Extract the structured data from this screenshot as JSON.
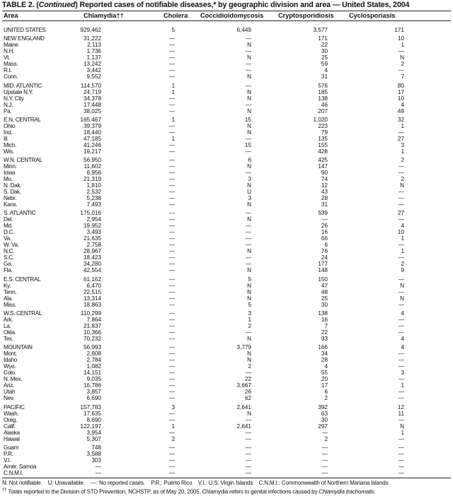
{
  "title": {
    "prefix": "TABLE 2. (",
    "continued": "Continued",
    "rest": ") Reported cases of notifiable diseases,* by geographic division and area — United States, 2004"
  },
  "columns": [
    "Area",
    "Chlamydia††",
    "Cholera",
    "Coccidioidomycosis",
    "Cryptosporidiosis",
    "Cyclosporiasis"
  ],
  "groups": [
    [
      [
        "UNITED STATES",
        "929,462",
        "5",
        "6,449",
        "3,577",
        "171"
      ]
    ],
    [
      [
        "NEW ENGLAND",
        "31,222",
        "—",
        "—",
        "171",
        "10"
      ],
      [
        "Maine",
        "2,113",
        "—",
        "N",
        "22",
        "1"
      ],
      [
        "N.H.",
        "1,736",
        "—",
        "—",
        "30",
        "—"
      ],
      [
        "Vt.",
        "1,137",
        "—",
        "N",
        "25",
        "N"
      ],
      [
        "Mass.",
        "13,242",
        "—",
        "—",
        "59",
        "2"
      ],
      [
        "R.I.",
        "3,442",
        "—",
        "—",
        "4",
        "—"
      ],
      [
        "Conn.",
        "9,552",
        "—",
        "N",
        "31",
        "7"
      ]
    ],
    [
      [
        "MID. ATLANTIC",
        "114,570",
        "1",
        "—",
        "576",
        "80"
      ],
      [
        "Upstate N.Y.",
        "24,719",
        "1",
        "N",
        "185",
        "17"
      ],
      [
        "N.Y. City",
        "34,378",
        "—",
        "N",
        "138",
        "10"
      ],
      [
        "N.J.",
        "17,448",
        "—",
        "—",
        "46",
        "4"
      ],
      [
        "Pa.",
        "38,025",
        "—",
        "N",
        "207",
        "49"
      ]
    ],
    [
      [
        "E.N. CENTRAL",
        "165,467",
        "1",
        "15",
        "1,020",
        "32"
      ],
      [
        "Ohio",
        "39,379",
        "—",
        "N",
        "223",
        "1"
      ],
      [
        "Ind.",
        "18,440",
        "—",
        "N",
        "79",
        "—"
      ],
      [
        "Ill.",
        "47,185",
        "1",
        "—",
        "135",
        "27"
      ],
      [
        "Mich.",
        "41,246",
        "—",
        "15",
        "155",
        "3"
      ],
      [
        "Wis.",
        "19,217",
        "—",
        "—",
        "428",
        "1"
      ]
    ],
    [
      [
        "W.N. CENTRAL",
        "56,950",
        "—",
        "6",
        "425",
        "2"
      ],
      [
        "Minn.",
        "11,602",
        "—",
        "N",
        "147",
        "—"
      ],
      [
        "Iowa",
        "6,956",
        "—",
        "—",
        "90",
        "—"
      ],
      [
        "Mo.",
        "21,319",
        "—",
        "3",
        "74",
        "2"
      ],
      [
        "N. Dak.",
        "1,810",
        "—",
        "N",
        "12",
        "N"
      ],
      [
        "S. Dak.",
        "2,532",
        "—",
        "U",
        "43",
        "—"
      ],
      [
        "Nebr.",
        "5,238",
        "—",
        "3",
        "28",
        "—"
      ],
      [
        "Kans.",
        "7,493",
        "—",
        "N",
        "31",
        "—"
      ]
    ],
    [
      [
        "S. ATLANTIC",
        "175,016",
        "—",
        "—",
        "539",
        "27"
      ],
      [
        "Del.",
        "2,954",
        "—",
        "N",
        "—",
        "—"
      ],
      [
        "Md.",
        "19,952",
        "—",
        "—",
        "26",
        "4"
      ],
      [
        "D.C.",
        "3,493",
        "—",
        "—",
        "16",
        "10"
      ],
      [
        "Va.",
        "21,635",
        "—",
        "—",
        "66",
        "1"
      ],
      [
        "W. Va.",
        "2,758",
        "—",
        "—",
        "6",
        "—"
      ],
      [
        "N.C.",
        "28,967",
        "—",
        "N",
        "76",
        "1"
      ],
      [
        "S.C.",
        "18,423",
        "—",
        "—",
        "24",
        "—"
      ],
      [
        "Ga.",
        "34,280",
        "—",
        "—",
        "177",
        "2"
      ],
      [
        "Fla.",
        "42,554",
        "—",
        "N",
        "148",
        "9"
      ]
    ],
    [
      [
        "E.S. CENTRAL",
        "61,162",
        "—",
        "5",
        "150",
        "—"
      ],
      [
        "Ky.",
        "6,470",
        "—",
        "N",
        "47",
        "N"
      ],
      [
        "Tenn.",
        "22,515",
        "—",
        "N",
        "48",
        "—"
      ],
      [
        "Ala.",
        "13,314",
        "—",
        "N",
        "25",
        "N"
      ],
      [
        "Miss.",
        "18,863",
        "—",
        "5",
        "30",
        "—"
      ]
    ],
    [
      [
        "W.S. CENTRAL",
        "110,299",
        "—",
        "3",
        "138",
        "4"
      ],
      [
        "Ark.",
        "7,864",
        "—",
        "1",
        "16",
        "—"
      ],
      [
        "La.",
        "21,837",
        "—",
        "2",
        "7",
        "—"
      ],
      [
        "Okla.",
        "10,366",
        "—",
        "—",
        "22",
        "—"
      ],
      [
        "Tex.",
        "70,232",
        "—",
        "N",
        "93",
        "4"
      ]
    ],
    [
      [
        "MOUNTAIN",
        "56,993",
        "—",
        "3,779",
        "166",
        "4"
      ],
      [
        "Mont.",
        "2,608",
        "—",
        "N",
        "34",
        "—"
      ],
      [
        "Idaho",
        "2,784",
        "—",
        "N",
        "28",
        "—"
      ],
      [
        "Wyo.",
        "1,082",
        "—",
        "2",
        "4",
        "—"
      ],
      [
        "Colo.",
        "14,151",
        "—",
        "—",
        "55",
        "3"
      ],
      [
        "N. Mex.",
        "9,035",
        "—",
        "22",
        "20",
        "—"
      ],
      [
        "Ariz.",
        "16,786",
        "—",
        "3,667",
        "17",
        "1"
      ],
      [
        "Utah",
        "3,857",
        "—",
        "26",
        "6",
        "—"
      ],
      [
        "Nev.",
        "6,690",
        "—",
        "62",
        "2",
        "—"
      ]
    ],
    [
      [
        "PACIFIC",
        "157,783",
        "3",
        "2,641",
        "392",
        "12"
      ],
      [
        "Wash.",
        "17,635",
        "—",
        "N",
        "63",
        "11"
      ],
      [
        "Oreg.",
        "8,690",
        "—",
        "—",
        "30",
        "—"
      ],
      [
        "Calif.",
        "122,197",
        "1",
        "2,641",
        "297",
        "N"
      ],
      [
        "Alaska",
        "3,954",
        "—",
        "—",
        "—",
        "1"
      ],
      [
        "Hawaii",
        "5,307",
        "2",
        "—",
        "2",
        "—"
      ]
    ],
    [
      [
        "Guam",
        "748",
        "—",
        "—",
        "—",
        "—"
      ],
      [
        "P.R.",
        "3,588",
        "—",
        "—",
        "—",
        "—"
      ],
      [
        "V.I.",
        "303",
        "—",
        "—",
        "—",
        "—"
      ],
      [
        "Amer. Samoa",
        "—",
        "—",
        "—",
        "—",
        "—"
      ],
      [
        "C.N.M.I.",
        "—",
        "—",
        "—",
        "—",
        "—"
      ]
    ]
  ],
  "footnotes": {
    "legend": "N: Not notifiable.    U: Unavailable.    —: No reported cases.    P.R.: Puerto Rico    V.I.: U.S. Virgin Islands    C.N.M.I.: Commonwealth of Northern Mariana Islands",
    "dagger_mark": "††",
    "dagger_text": " Totals reported to the Division of STD Prevention, NCHSTP, as of May 20, 2005. Chlamydia refers to genital infections caused by ",
    "dagger_italic": "Chlamydia trachomatis",
    "dagger_end": "."
  }
}
